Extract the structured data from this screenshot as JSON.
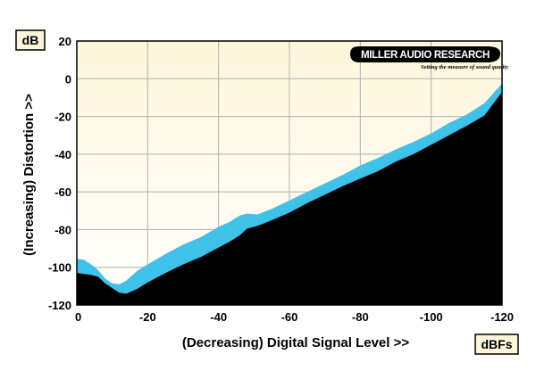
{
  "logo": {
    "name": "MILLER AUDIO RESEARCH",
    "tagline": "Setting the measure of sound quality"
  },
  "colors": {
    "plot_bg_top": "#fdf6da",
    "plot_bg_bottom": "#ffffff",
    "band_fill": "#3ec2ea",
    "floor_fill": "#000000",
    "grid": "#b0b0b0"
  },
  "chart_data": {
    "type": "area",
    "title": "",
    "xlabel": "(Decreasing) Digital Signal Level >>",
    "ylabel": "(Increasing) Distortion >>",
    "x_unit": "dBFs",
    "y_unit": "dB",
    "xlim": [
      0,
      -120
    ],
    "ylim": [
      -120,
      20
    ],
    "xticks": [
      0,
      -20,
      -40,
      -60,
      -80,
      -100,
      -120
    ],
    "yticks": [
      20,
      0,
      -20,
      -40,
      -60,
      -80,
      -100,
      -120
    ],
    "grid": true,
    "series": [
      {
        "role": "band-upper",
        "x": [
          0,
          -2,
          -4,
          -6,
          -8,
          -10,
          -12,
          -14,
          -17,
          -20,
          -25,
          -30,
          -35,
          -40,
          -43,
          -46,
          -48,
          -51,
          -55,
          -60,
          -65,
          -70,
          -75,
          -80,
          -85,
          -90,
          -95,
          -100,
          -105,
          -110,
          -115,
          -120
        ],
        "y": [
          -95.5,
          -96,
          -98.5,
          -101.5,
          -106,
          -108.5,
          -109,
          -107,
          -102,
          -98.5,
          -93,
          -88,
          -84,
          -78.5,
          -76,
          -72.5,
          -71.5,
          -72,
          -69,
          -64.5,
          -60,
          -55.5,
          -51,
          -46,
          -42,
          -37.5,
          -33.5,
          -29,
          -23.5,
          -19,
          -13,
          -2.5
        ]
      },
      {
        "role": "band-lower",
        "x": [
          0,
          -2,
          -4,
          -6,
          -8,
          -10,
          -12,
          -14,
          -17,
          -20,
          -25,
          -30,
          -35,
          -40,
          -43,
          -46,
          -48,
          -51,
          -55,
          -60,
          -65,
          -70,
          -75,
          -80,
          -85,
          -90,
          -95,
          -100,
          -105,
          -110,
          -115,
          -120
        ],
        "y": [
          -103,
          -103.5,
          -104,
          -105,
          -108.5,
          -111,
          -113.5,
          -114,
          -111.5,
          -108,
          -103,
          -98.5,
          -94.5,
          -89.5,
          -86.5,
          -83,
          -79.5,
          -78,
          -75,
          -71,
          -66,
          -61.5,
          -57,
          -53,
          -49,
          -44,
          -40,
          -35,
          -30,
          -25,
          -19.5,
          -7
        ]
      }
    ]
  }
}
